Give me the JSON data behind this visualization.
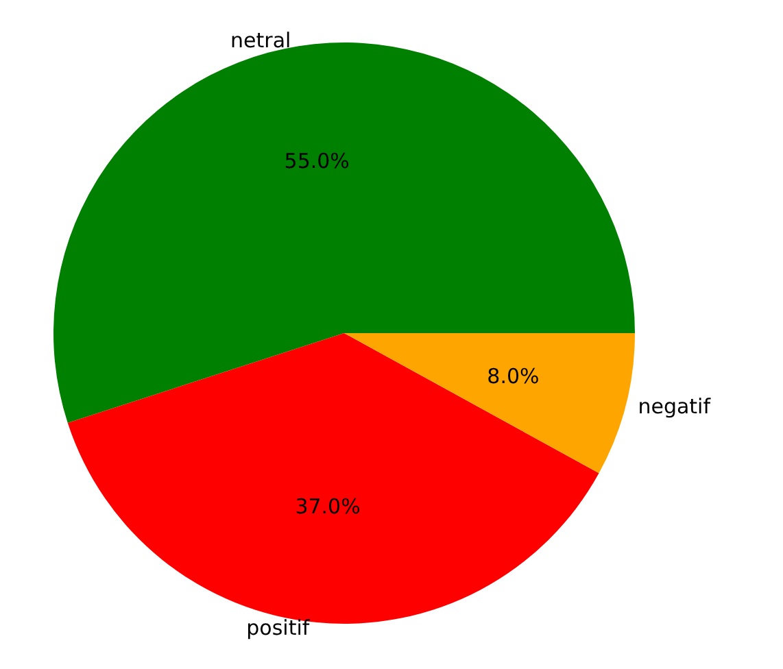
{
  "chart_data": {
    "type": "pie",
    "categories": [
      "netral",
      "positif",
      "negatif"
    ],
    "values": [
      55,
      37,
      8
    ],
    "colors": [
      "#008000",
      "#ff0000",
      "#ffa500"
    ],
    "value_labels": [
      "55.0%",
      "37.0%",
      "8.0%"
    ],
    "legend": false
  }
}
